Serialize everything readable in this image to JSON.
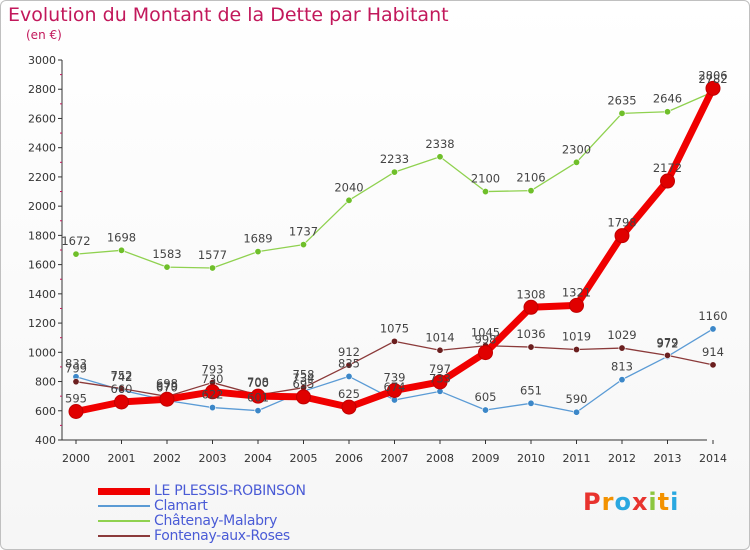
{
  "title": "Evolution du Montant de la Dette par Habitant",
  "subtitle": "(en €)",
  "logo_text": "Proxiti",
  "logo_colors": [
    "#e8332e",
    "#f39200",
    "#2aa8e0",
    "#e8332e",
    "#8cc63f",
    "#f39200",
    "#2aa8e0"
  ],
  "chart_data": {
    "type": "line",
    "x": [
      "2000",
      "2001",
      "2002",
      "2003",
      "2004",
      "2005",
      "2006",
      "2007",
      "2008",
      "2009",
      "2010",
      "2011",
      "2012",
      "2013",
      "2014"
    ],
    "ylim": [
      400,
      3000
    ],
    "yticks": [
      "400",
      "600",
      "800",
      "1000",
      "1200",
      "1400",
      "1600",
      "1800",
      "2000",
      "2200",
      "2400",
      "2600",
      "2800",
      "3000"
    ],
    "grid": false,
    "legend_position": "bottom-left",
    "series": [
      {
        "name": "Clamart",
        "color": "#5b9bd5",
        "marker": "#3c87c8",
        "width": 1.3,
        "values": [
          833,
          742,
          670,
          622,
          601,
          734,
          835,
          674,
          733,
          605,
          651,
          590,
          813,
          972,
          1160
        ],
        "labels": [
          "833",
          "742",
          "670",
          "622",
          "601",
          "734",
          "835",
          "674",
          "733",
          "605",
          "651",
          "590",
          "813",
          "972",
          "1160"
        ]
      },
      {
        "name": "Châtenay-Malabry",
        "color": "#8fd14f",
        "marker": "#6fbf2a",
        "width": 1.3,
        "values": [
          1672,
          1698,
          1583,
          1577,
          1689,
          1737,
          2040,
          2233,
          2338,
          2100,
          2106,
          2300,
          2635,
          2646,
          2782
        ],
        "labels": [
          "1672",
          "1698",
          "1583",
          "1577",
          "1689",
          "1737",
          "2040",
          "2233",
          "2338",
          "2100",
          "2106",
          "2300",
          "2635",
          "2646",
          "2782"
        ]
      },
      {
        "name": "Fontenay-aux-Roses",
        "color": "#8b3a3a",
        "marker": "#6b1f1f",
        "width": 1.3,
        "values": [
          799,
          752,
          698,
          793,
          708,
          758,
          912,
          1075,
          1014,
          1045,
          1036,
          1019,
          1029,
          979,
          914
        ],
        "labels": [
          "799",
          "752",
          "698",
          "793",
          "708",
          "758",
          "912",
          "1075",
          "1014",
          "1045",
          "1036",
          "1019",
          "1029",
          "979",
          "914"
        ]
      },
      {
        "name": "LE PLESSIS-ROBINSON",
        "color": "#f00000",
        "marker": "#e00000",
        "width": 7,
        "values": [
          595,
          660,
          679,
          730,
          700,
          695,
          625,
          739,
          797,
          998,
          1308,
          1321,
          1798,
          2172,
          2806
        ],
        "labels": [
          "595",
          "660",
          "679",
          "730",
          "700",
          "695",
          "625",
          "739",
          "797",
          "998",
          "1308",
          "1321",
          "1798",
          "2172",
          "2806"
        ]
      }
    ],
    "legend": [
      {
        "name": "LE PLESSIS-ROBINSON",
        "color": "#f00000",
        "width": 7
      },
      {
        "name": "Clamart",
        "color": "#5b9bd5",
        "width": 1.5
      },
      {
        "name": "Châtenay-Malabry",
        "color": "#8fd14f",
        "width": 1.5
      },
      {
        "name": "Fontenay-aux-Roses",
        "color": "#8b3a3a",
        "width": 1.5
      }
    ]
  }
}
